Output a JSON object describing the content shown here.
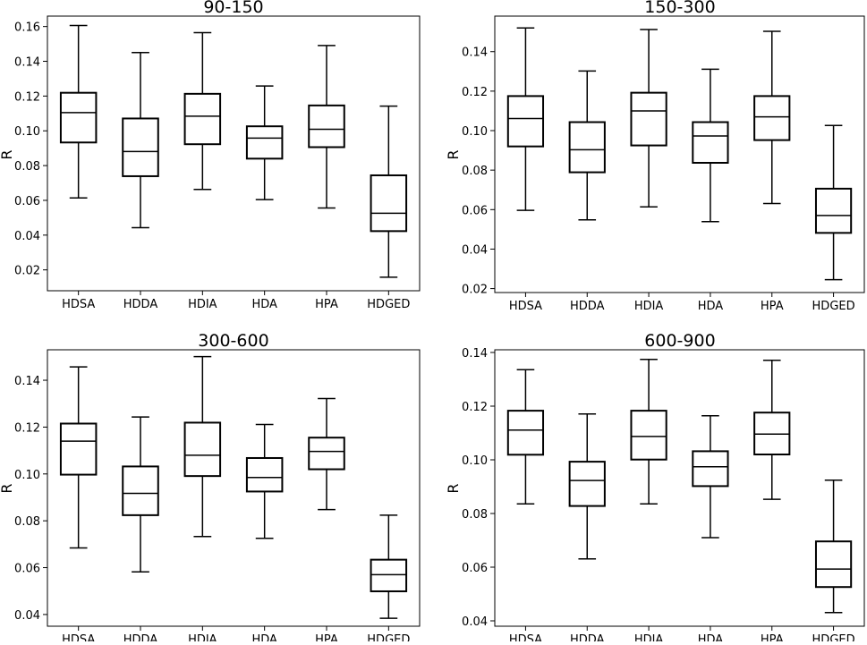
{
  "chart_data": [
    {
      "type": "box",
      "title": "90-150",
      "xlabel": "",
      "ylabel": "R",
      "ylim": [
        0.008,
        0.166
      ],
      "yticks": [
        0.02,
        0.04,
        0.06,
        0.08,
        0.1,
        0.12,
        0.14,
        0.16
      ],
      "ytick_labels": [
        "0.02",
        "0.04",
        "0.06",
        "0.08",
        "0.10",
        "0.12",
        "0.14",
        "0.16"
      ],
      "categories": [
        "HDSA",
        "HDDA",
        "HDIA",
        "HDA",
        "HPA",
        "HDGED"
      ],
      "boxes": [
        {
          "min": 0.0614,
          "q1": 0.0933,
          "median": 0.1105,
          "q3": 0.1219,
          "max": 0.1606
        },
        {
          "min": 0.0443,
          "q1": 0.0739,
          "median": 0.0881,
          "q3": 0.1071,
          "max": 0.145
        },
        {
          "min": 0.0663,
          "q1": 0.0923,
          "median": 0.1084,
          "q3": 0.1213,
          "max": 0.1565
        },
        {
          "min": 0.0604,
          "q1": 0.084,
          "median": 0.0958,
          "q3": 0.1026,
          "max": 0.1258
        },
        {
          "min": 0.0556,
          "q1": 0.0906,
          "median": 0.1009,
          "q3": 0.1146,
          "max": 0.1491
        },
        {
          "min": 0.0158,
          "q1": 0.0423,
          "median": 0.0526,
          "q3": 0.0744,
          "max": 0.1142
        }
      ]
    },
    {
      "type": "box",
      "title": "150-300",
      "xlabel": "",
      "ylabel": "R",
      "ylim": [
        0.018,
        0.158
      ],
      "yticks": [
        0.02,
        0.04,
        0.06,
        0.08,
        0.1,
        0.12,
        0.14
      ],
      "ytick_labels": [
        "0.02",
        "0.04",
        "0.06",
        "0.08",
        "0.10",
        "0.12",
        "0.14"
      ],
      "categories": [
        "HDSA",
        "HDDA",
        "HDIA",
        "HDA",
        "HPA",
        "HDGED"
      ],
      "boxes": [
        {
          "min": 0.0596,
          "q1": 0.092,
          "median": 0.1061,
          "q3": 0.1175,
          "max": 0.152
        },
        {
          "min": 0.0548,
          "q1": 0.0789,
          "median": 0.0903,
          "q3": 0.1043,
          "max": 0.1302
        },
        {
          "min": 0.0614,
          "q1": 0.0925,
          "median": 0.11,
          "q3": 0.1192,
          "max": 0.1512
        },
        {
          "min": 0.0539,
          "q1": 0.0837,
          "median": 0.0973,
          "q3": 0.1043,
          "max": 0.1311
        },
        {
          "min": 0.0631,
          "q1": 0.0952,
          "median": 0.107,
          "q3": 0.1175,
          "max": 0.1503
        },
        {
          "min": 0.0245,
          "q1": 0.0482,
          "median": 0.057,
          "q3": 0.0706,
          "max": 0.1026
        }
      ]
    },
    {
      "type": "box",
      "title": "300-600",
      "xlabel": "",
      "ylabel": "R",
      "ylim": [
        0.035,
        0.153
      ],
      "yticks": [
        0.04,
        0.06,
        0.08,
        0.1,
        0.12,
        0.14
      ],
      "ytick_labels": [
        "0.04",
        "0.06",
        "0.08",
        "0.10",
        "0.12",
        "0.14"
      ],
      "categories": [
        "HDSA",
        "HDDA",
        "HDIA",
        "HDA",
        "HPA",
        "HDGED"
      ],
      "boxes": [
        {
          "min": 0.0684,
          "q1": 0.0997,
          "median": 0.114,
          "q3": 0.1215,
          "max": 0.1457
        },
        {
          "min": 0.0582,
          "q1": 0.0824,
          "median": 0.0917,
          "q3": 0.1032,
          "max": 0.1243
        },
        {
          "min": 0.0733,
          "q1": 0.0991,
          "median": 0.108,
          "q3": 0.1219,
          "max": 0.1501
        },
        {
          "min": 0.0725,
          "q1": 0.0925,
          "median": 0.0985,
          "q3": 0.1068,
          "max": 0.1211
        },
        {
          "min": 0.0848,
          "q1": 0.102,
          "median": 0.1096,
          "q3": 0.1155,
          "max": 0.1322
        },
        {
          "min": 0.0384,
          "q1": 0.0499,
          "median": 0.057,
          "q3": 0.0634,
          "max": 0.0824
        }
      ]
    },
    {
      "type": "box",
      "title": "600-900",
      "xlabel": "",
      "ylabel": "R",
      "ylim": [
        0.038,
        0.141
      ],
      "yticks": [
        0.04,
        0.06,
        0.08,
        0.1,
        0.12,
        0.14
      ],
      "ytick_labels": [
        "0.04",
        "0.06",
        "0.08",
        "0.10",
        "0.12",
        "0.14"
      ],
      "categories": [
        "HDSA",
        "HDDA",
        "HDIA",
        "HDA",
        "HPA",
        "HDGED"
      ],
      "boxes": [
        {
          "min": 0.0836,
          "q1": 0.1019,
          "median": 0.1111,
          "q3": 0.1183,
          "max": 0.1336
        },
        {
          "min": 0.0631,
          "q1": 0.0828,
          "median": 0.0923,
          "q3": 0.0993,
          "max": 0.1171
        },
        {
          "min": 0.0836,
          "q1": 0.1001,
          "median": 0.1087,
          "q3": 0.1183,
          "max": 0.1374
        },
        {
          "min": 0.071,
          "q1": 0.0902,
          "median": 0.0974,
          "q3": 0.1032,
          "max": 0.1164
        },
        {
          "min": 0.0853,
          "q1": 0.102,
          "median": 0.1096,
          "q3": 0.1176,
          "max": 0.1371
        },
        {
          "min": 0.0431,
          "q1": 0.0526,
          "median": 0.0593,
          "q3": 0.0696,
          "max": 0.0924
        }
      ]
    }
  ]
}
